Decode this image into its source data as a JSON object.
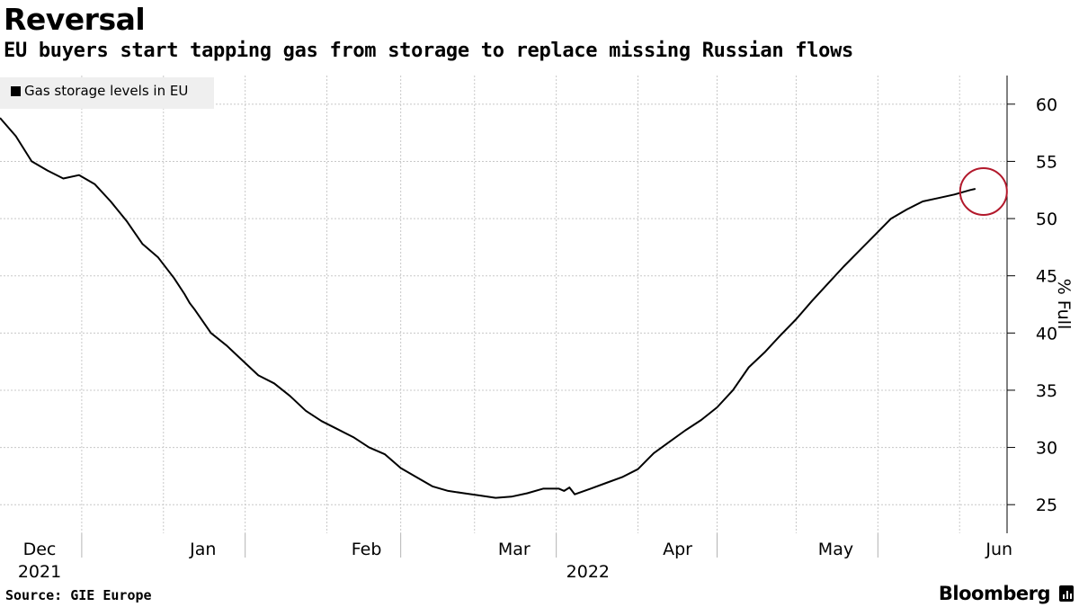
{
  "header": {
    "title": "Reversal",
    "subtitle": "EU buyers start tapping gas from storage to replace missing Russian flows"
  },
  "legend": {
    "label": "Gas storage levels in EU"
  },
  "footer": {
    "source": "Source: GIE Europe",
    "brand": "Bloomberg"
  },
  "chart_data": {
    "type": "line",
    "title": "Reversal",
    "subtitle": "EU buyers start tapping gas from storage to replace missing Russian flows",
    "xlabel": "",
    "ylabel": "% Full",
    "ylim": [
      22.5,
      62.5
    ],
    "yticks": [
      25,
      30,
      35,
      40,
      45,
      50,
      55,
      60
    ],
    "xlim": [
      "2021-12-01",
      "2022-06-10"
    ],
    "xticks": [
      {
        "date": "2021-12-01",
        "label": "Dec"
      },
      {
        "date": "2022-01-01",
        "label": "Jan"
      },
      {
        "date": "2022-02-01",
        "label": "Feb"
      },
      {
        "date": "2022-03-01",
        "label": "Mar"
      },
      {
        "date": "2022-04-01",
        "label": "Apr"
      },
      {
        "date": "2022-05-01",
        "label": "May"
      },
      {
        "date": "2022-06-01",
        "label": "Jun"
      }
    ],
    "year_labels": [
      {
        "date": "2021-12-01",
        "label": "2021"
      },
      {
        "date": "2022-03-15",
        "label": "2022"
      }
    ],
    "grid": true,
    "legend_position": "top-left",
    "line_color": "#000000",
    "highlight_color": "#b2182b",
    "series": [
      {
        "name": "Gas storage levels in EU",
        "x": [
          "2021-12-01",
          "2021-12-04",
          "2021-12-07",
          "2021-12-10",
          "2021-12-13",
          "2021-12-16",
          "2021-12-19",
          "2021-12-22",
          "2021-12-25",
          "2021-12-28",
          "2021-12-31",
          "2022-01-03",
          "2022-01-05",
          "2022-01-06",
          "2022-01-07",
          "2022-01-10",
          "2022-01-13",
          "2022-01-16",
          "2022-01-19",
          "2022-01-22",
          "2022-01-25",
          "2022-01-28",
          "2022-01-31",
          "2022-02-03",
          "2022-02-06",
          "2022-02-09",
          "2022-02-12",
          "2022-02-15",
          "2022-02-18",
          "2022-02-21",
          "2022-02-24",
          "2022-02-27",
          "2022-03-02",
          "2022-03-05",
          "2022-03-08",
          "2022-03-11",
          "2022-03-14",
          "2022-03-17",
          "2022-03-18",
          "2022-03-19",
          "2022-03-20",
          "2022-03-23",
          "2022-03-26",
          "2022-03-29",
          "2022-04-01",
          "2022-04-04",
          "2022-04-07",
          "2022-04-10",
          "2022-04-13",
          "2022-04-16",
          "2022-04-19",
          "2022-04-22",
          "2022-04-25",
          "2022-04-28",
          "2022-05-01",
          "2022-05-04",
          "2022-05-07",
          "2022-05-10",
          "2022-05-13",
          "2022-05-16",
          "2022-05-19",
          "2022-05-22",
          "2022-05-25",
          "2022-05-28",
          "2022-05-31",
          "2022-06-03",
          "2022-06-04"
        ],
        "values": [
          58.8,
          57.2,
          55.0,
          54.2,
          53.5,
          53.8,
          53.0,
          51.5,
          49.8,
          47.8,
          46.6,
          44.8,
          43.4,
          42.6,
          42.0,
          40.0,
          38.9,
          37.6,
          36.3,
          35.6,
          34.5,
          33.2,
          32.3,
          31.6,
          30.9,
          30.0,
          29.4,
          28.2,
          27.4,
          26.6,
          26.2,
          26.0,
          25.8,
          25.6,
          25.7,
          26.0,
          26.4,
          26.4,
          26.2,
          26.5,
          25.9,
          26.4,
          26.9,
          27.4,
          28.1,
          29.5,
          30.5,
          31.5,
          32.4,
          33.5,
          35.0,
          37.0,
          38.3,
          39.8,
          41.2,
          42.8,
          44.3,
          45.8,
          47.2,
          48.6,
          50.0,
          50.8,
          51.5,
          51.8,
          52.1,
          52.5,
          52.6
        ]
      }
    ],
    "annotation": {
      "type": "circle",
      "date": "2022-06-04",
      "value": 52.6
    }
  }
}
